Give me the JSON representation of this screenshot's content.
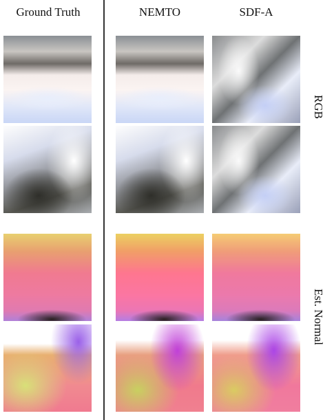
{
  "header": {
    "columns": [
      "Ground Truth",
      "NEMTO",
      "SDF-A"
    ]
  },
  "rows": [
    {
      "label": "RGB"
    },
    {
      "label": "Est. Normal"
    }
  ]
}
